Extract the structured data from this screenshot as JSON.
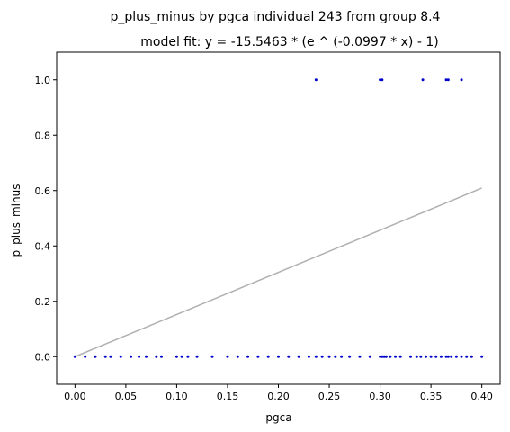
{
  "chart_data": {
    "type": "scatter",
    "title": "p_plus_minus by pgca individual 243 from group 8.4",
    "subtitle": "model fit: y = -15.5463 * (e ^ (-0.0997 * x) - 1)",
    "xlabel": "pgca",
    "ylabel": "p_plus_minus",
    "xlim": [
      -0.018,
      0.418
    ],
    "ylim": [
      -0.1,
      1.1
    ],
    "xticks": [
      0.0,
      0.05,
      0.1,
      0.15,
      0.2,
      0.25,
      0.3,
      0.35,
      0.4
    ],
    "xtick_labels": [
      "0.00",
      "0.05",
      "0.10",
      "0.15",
      "0.20",
      "0.25",
      "0.30",
      "0.35",
      "0.40"
    ],
    "yticks": [
      0.0,
      0.2,
      0.4,
      0.6,
      0.8,
      1.0
    ],
    "ytick_labels": [
      "0.0",
      "0.2",
      "0.4",
      "0.6",
      "0.8",
      "1.0"
    ],
    "grid": false,
    "colors": {
      "points": "#0000cc",
      "fit_line": "#b0b0b0"
    },
    "series": [
      {
        "kind": "points",
        "x": [
          0.0,
          0.01,
          0.02,
          0.03,
          0.035,
          0.045,
          0.055,
          0.063,
          0.07,
          0.08,
          0.085,
          0.1,
          0.105,
          0.111,
          0.12,
          0.135,
          0.15,
          0.16,
          0.17,
          0.18,
          0.19,
          0.2,
          0.21,
          0.22,
          0.23,
          0.237,
          0.243,
          0.25,
          0.256,
          0.262,
          0.27,
          0.28,
          0.29,
          0.3,
          0.302,
          0.304,
          0.306,
          0.31,
          0.315,
          0.32,
          0.33,
          0.336,
          0.34,
          0.345,
          0.35,
          0.355,
          0.36,
          0.365,
          0.367,
          0.37,
          0.375,
          0.38,
          0.385,
          0.39,
          0.4,
          0.237,
          0.3,
          0.302,
          0.342,
          0.365,
          0.367,
          0.38
        ],
        "y": [
          0,
          0,
          0,
          0,
          0,
          0,
          0,
          0,
          0,
          0,
          0,
          0,
          0,
          0,
          0,
          0,
          0,
          0,
          0,
          0,
          0,
          0,
          0,
          0,
          0,
          0,
          0,
          0,
          0,
          0,
          0,
          0,
          0,
          0,
          0,
          0,
          0,
          0,
          0,
          0,
          0,
          0,
          0,
          0,
          0,
          0,
          0,
          0,
          0,
          0,
          0,
          0,
          0,
          0,
          0,
          1,
          1,
          1,
          1,
          1,
          1,
          1
        ]
      },
      {
        "kind": "fit_line",
        "x": [
          0.0,
          0.4
        ],
        "y": [
          0.0,
          0.609
        ]
      }
    ]
  }
}
